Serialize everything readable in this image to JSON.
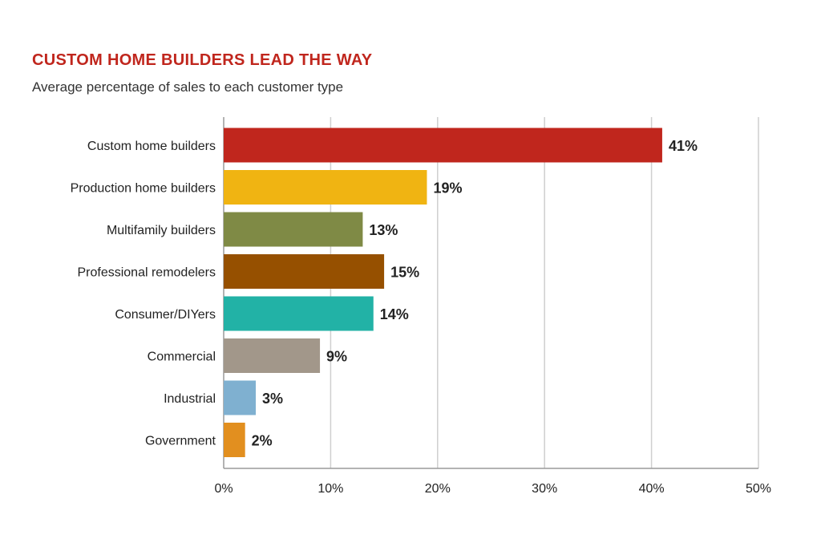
{
  "chart_data": {
    "type": "bar",
    "orientation": "horizontal",
    "title": "CUSTOM HOME BUILDERS LEAD THE WAY",
    "subtitle": "Average percentage of sales to each customer type",
    "categories": [
      "Custom home builders",
      "Production home builders",
      "Multifamily builders",
      "Professional remodelers",
      "Consumer/DIYers",
      "Commercial",
      "Industrial",
      "Government"
    ],
    "values": [
      41,
      19,
      13,
      15,
      14,
      9,
      3,
      2
    ],
    "value_labels": [
      "41%",
      "19%",
      "13%",
      "15%",
      "14%",
      "9%",
      "3%",
      "2%"
    ],
    "colors": [
      "#c0261d",
      "#f0b412",
      "#7f8a45",
      "#965000",
      "#22b2a6",
      "#a2978a",
      "#7fb0d0",
      "#e28f1f"
    ],
    "xlim": [
      0,
      50
    ],
    "xticks": [
      0,
      10,
      20,
      30,
      40,
      50
    ],
    "xtick_labels": [
      "0%",
      "10%",
      "20%",
      "30%",
      "40%",
      "50%"
    ],
    "grid": true,
    "xlabel": "",
    "ylabel": ""
  }
}
